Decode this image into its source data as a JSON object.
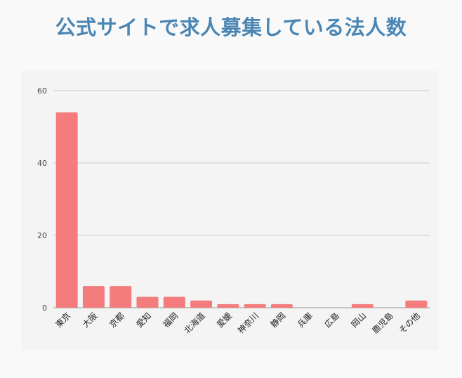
{
  "page": {
    "title": "公式サイトで求人募集している法人数"
  },
  "colors": {
    "title": "#4a86b4",
    "bar": "#f47c7c",
    "grid": "#cccccc",
    "panel": "#f4f4f4"
  },
  "chart_data": {
    "type": "bar",
    "title": "",
    "xlabel": "",
    "ylabel": "",
    "categories": [
      "東京",
      "大阪",
      "京都",
      "愛知",
      "福岡",
      "北海道",
      "愛媛",
      "神奈川",
      "静岡",
      "兵庫",
      "広島",
      "岡山",
      "鹿児島",
      "その他"
    ],
    "values": [
      54,
      6,
      6,
      3,
      3,
      2,
      1,
      1,
      1,
      0,
      0,
      1,
      0,
      2
    ],
    "ylim": [
      0,
      60
    ],
    "yticks": [
      0,
      20,
      40,
      60
    ],
    "grid": true,
    "legend": "none"
  }
}
